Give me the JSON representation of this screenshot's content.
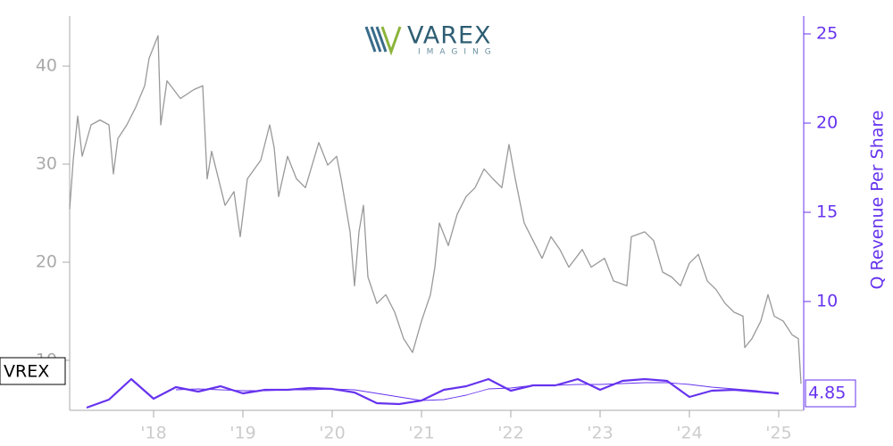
{
  "chart_data": {
    "type": "line",
    "logo": {
      "name": "VAREX",
      "tagline": "IMAGING"
    },
    "y2label": "Q Revenue Per Share",
    "xlim": [
      2017.06,
      2025.28
    ],
    "xticks": [
      {
        "value": 2018,
        "label": "'18"
      },
      {
        "value": 2019,
        "label": "'19"
      },
      {
        "value": 2020,
        "label": "'20"
      },
      {
        "value": 2021,
        "label": "'21"
      },
      {
        "value": 2022,
        "label": "'22"
      },
      {
        "value": 2023,
        "label": "'23"
      },
      {
        "value": 2024,
        "label": "'24"
      },
      {
        "value": 2025,
        "label": "'25"
      }
    ],
    "ylim": [
      4.9,
      45.1
    ],
    "yticks": [
      10,
      20,
      30,
      40
    ],
    "y2lim": [
      3.9,
      26
    ],
    "y2ticks": [
      10,
      15,
      20,
      25
    ],
    "series": [
      {
        "name": "VREX",
        "color": "#999999",
        "width": 1.3,
        "x": [
          2017.06,
          2017.1,
          2017.15,
          2017.2,
          2017.3,
          2017.4,
          2017.5,
          2017.55,
          2017.6,
          2017.7,
          2017.8,
          2017.9,
          2017.95,
          2018.05,
          2018.08,
          2018.15,
          2018.3,
          2018.45,
          2018.55,
          2018.6,
          2018.65,
          2018.8,
          2018.9,
          2018.97,
          2019.05,
          2019.2,
          2019.3,
          2019.35,
          2019.4,
          2019.5,
          2019.6,
          2019.7,
          2019.85,
          2019.95,
          2020.05,
          2020.1,
          2020.2,
          2020.25,
          2020.3,
          2020.35,
          2020.4,
          2020.5,
          2020.6,
          2020.7,
          2020.8,
          2020.9,
          2021.0,
          2021.1,
          2021.15,
          2021.2,
          2021.3,
          2021.4,
          2021.5,
          2021.6,
          2021.7,
          2021.8,
          2021.9,
          2021.98,
          2022.05,
          2022.15,
          2022.25,
          2022.35,
          2022.45,
          2022.55,
          2022.65,
          2022.8,
          2022.9,
          2023.05,
          2023.15,
          2023.3,
          2023.35,
          2023.5,
          2023.6,
          2023.7,
          2023.8,
          2023.9,
          2024.0,
          2024.1,
          2024.2,
          2024.3,
          2024.4,
          2024.5,
          2024.6,
          2024.62,
          2024.7,
          2024.8,
          2024.88,
          2024.95,
          2025.05,
          2025.15,
          2025.22,
          2025.25
        ],
        "values": [
          25.4,
          30.4,
          34.9,
          30.8,
          34,
          34.5,
          34,
          29,
          32.6,
          34,
          35.8,
          38,
          40.8,
          43.1,
          34,
          38.5,
          36.7,
          37.6,
          38,
          28.5,
          31.3,
          25.8,
          27.2,
          22.6,
          28.5,
          30.4,
          34,
          31.7,
          26.7,
          30.8,
          28.5,
          27.6,
          32.2,
          29.9,
          30.8,
          28.5,
          23.1,
          17.6,
          23.1,
          25.8,
          18.5,
          15.8,
          16.7,
          14.9,
          12.2,
          10.8,
          14,
          16.7,
          19.5,
          24,
          21.7,
          24.9,
          26.7,
          27.6,
          29.5,
          28.5,
          27.6,
          32,
          28.5,
          24,
          22.2,
          20.4,
          22.6,
          21.3,
          19.5,
          21.3,
          19.5,
          20.4,
          18.1,
          17.6,
          22.6,
          23.1,
          22.2,
          19,
          18.5,
          17.6,
          19.9,
          20.8,
          18.1,
          17.2,
          15.8,
          14.9,
          14.5,
          11.3,
          12.2,
          14,
          16.7,
          14.5,
          14,
          12.6,
          12.2,
          7.6
        ]
      },
      {
        "color": "#6633ee",
        "width": 2.2,
        "axis": "y2",
        "x": [
          2017.25,
          2017.5,
          2017.75,
          2018.0,
          2018.25,
          2018.5,
          2018.75,
          2019.0,
          2019.25,
          2019.5,
          2019.75,
          2020.0,
          2020.25,
          2020.5,
          2020.75,
          2021.0,
          2021.25,
          2021.5,
          2021.75,
          2022.0,
          2022.25,
          2022.5,
          2022.75,
          2023.0,
          2023.25,
          2023.5,
          2023.75,
          2024.0,
          2024.25,
          2024.5,
          2024.75,
          2025.0
        ],
        "values": [
          4.05,
          4.5,
          5.65,
          4.55,
          5.2,
          4.95,
          5.25,
          4.85,
          5.05,
          5.05,
          5.15,
          5.1,
          4.9,
          4.3,
          4.25,
          4.45,
          5.05,
          5.25,
          5.65,
          5.0,
          5.3,
          5.3,
          5.65,
          5.05,
          5.55,
          5.65,
          5.55,
          4.65,
          5.0,
          5.05,
          4.95,
          4.85
        ]
      },
      {
        "color": "#6633ee",
        "width": 0.9,
        "axis": "y2",
        "x": [
          2018.25,
          2018.5,
          2018.75,
          2019.0,
          2019.25,
          2019.5,
          2019.75,
          2020.0,
          2020.25,
          2020.5,
          2020.75,
          2021.0,
          2021.25,
          2021.5,
          2021.75,
          2022.0,
          2022.25,
          2022.5,
          2022.75,
          2023.0,
          2023.25,
          2023.5,
          2023.75,
          2024.0,
          2024.25,
          2024.5,
          2024.75,
          2025.0
        ],
        "values": [
          5.05,
          5.1,
          5.05,
          5.0,
          5.0,
          5.05,
          5.05,
          5.1,
          5.05,
          4.85,
          4.65,
          4.45,
          4.5,
          4.75,
          5.1,
          5.15,
          5.3,
          5.3,
          5.35,
          5.35,
          5.4,
          5.45,
          5.45,
          5.35,
          5.2,
          5.1,
          5.0,
          4.8
        ]
      }
    ]
  }
}
